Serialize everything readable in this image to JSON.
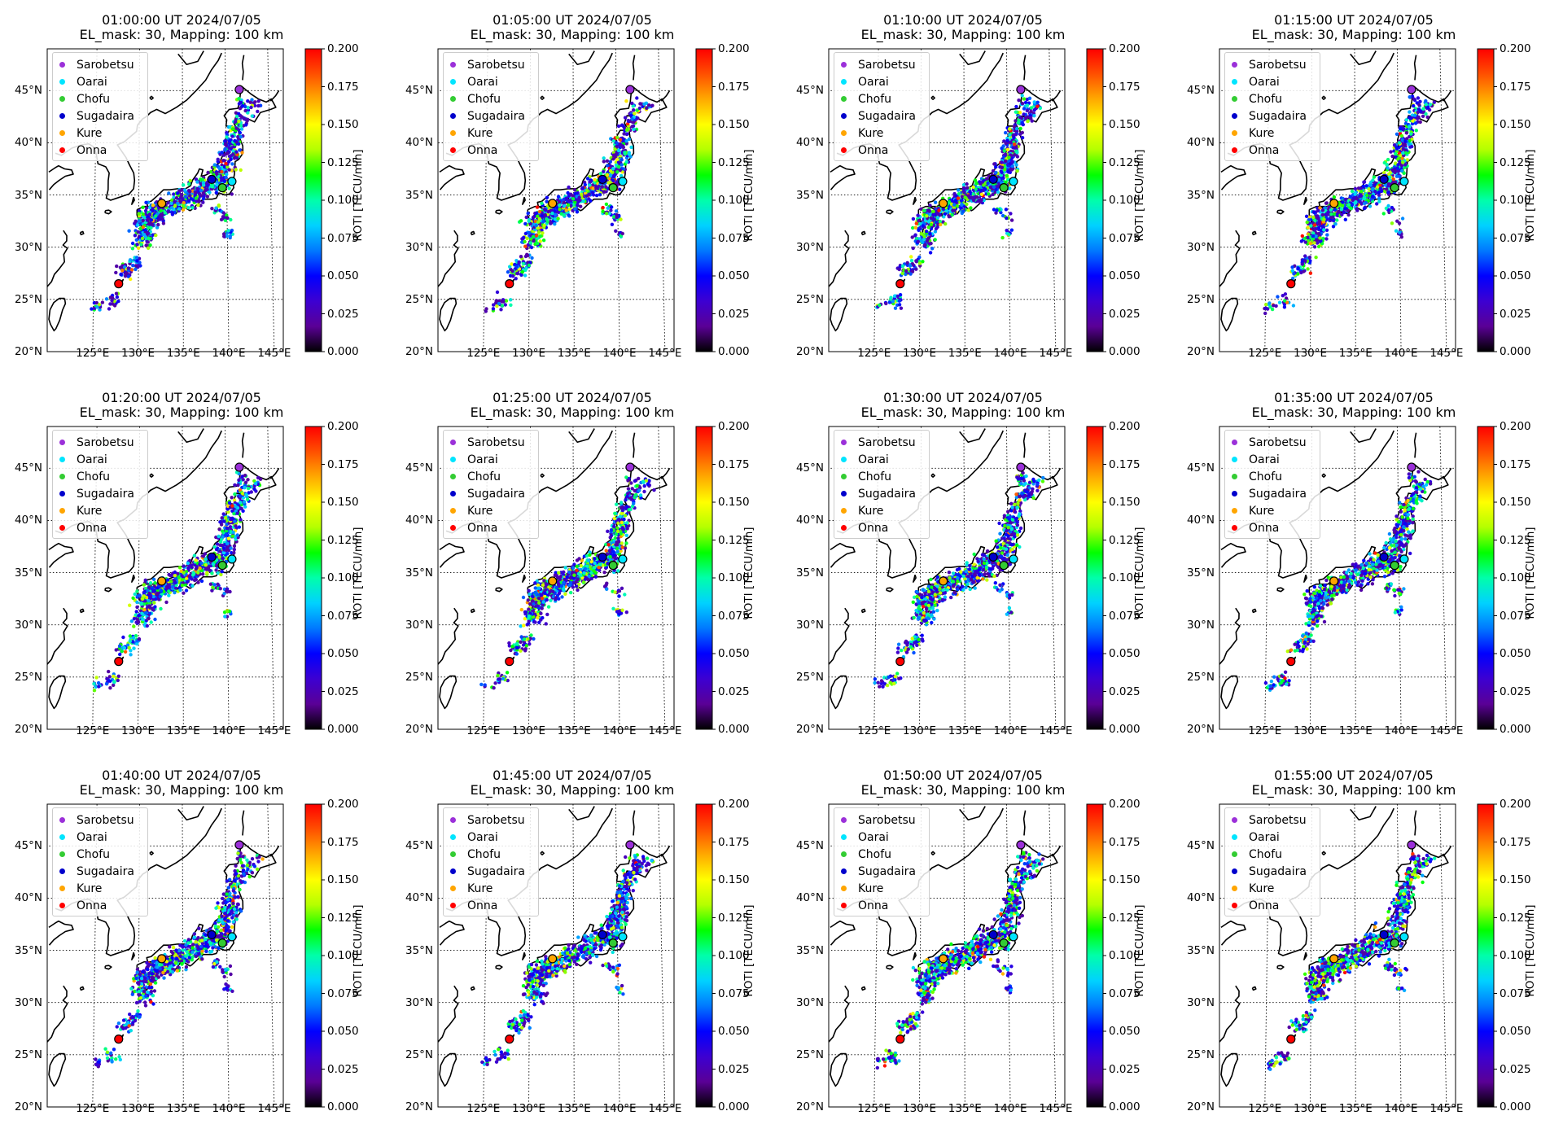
{
  "figure": {
    "title_prefix": "",
    "panels": [
      {
        "time": "01:00:00 UT 2024/07/05",
        "subtitle": "EL_mask: 30, Mapping: 100 km",
        "seed": 11
      },
      {
        "time": "01:05:00 UT 2024/07/05",
        "subtitle": "EL_mask: 30, Mapping: 100 km",
        "seed": 23
      },
      {
        "time": "01:10:00 UT 2024/07/05",
        "subtitle": "EL_mask: 30, Mapping: 100 km",
        "seed": 37
      },
      {
        "time": "01:15:00 UT 2024/07/05",
        "subtitle": "EL_mask: 30, Mapping: 100 km",
        "seed": 41
      },
      {
        "time": "01:20:00 UT 2024/07/05",
        "subtitle": "EL_mask: 30, Mapping: 100 km",
        "seed": 53
      },
      {
        "time": "01:25:00 UT 2024/07/05",
        "subtitle": "EL_mask: 30, Mapping: 100 km",
        "seed": 67
      },
      {
        "time": "01:30:00 UT 2024/07/05",
        "subtitle": "EL_mask: 30, Mapping: 100 km",
        "seed": 71
      },
      {
        "time": "01:35:00 UT 2024/07/05",
        "subtitle": "EL_mask: 30, Mapping: 100 km",
        "seed": 83
      },
      {
        "time": "01:40:00 UT 2024/07/05",
        "subtitle": "EL_mask: 30, Mapping: 100 km",
        "seed": 97
      },
      {
        "time": "01:45:00 UT 2024/07/05",
        "subtitle": "EL_mask: 30, Mapping: 100 km",
        "seed": 101
      },
      {
        "time": "01:50:00 UT 2024/07/05",
        "subtitle": "EL_mask: 30, Mapping: 100 km",
        "seed": 113
      },
      {
        "time": "01:55:00 UT 2024/07/05",
        "subtitle": "EL_mask: 30, Mapping: 100 km",
        "seed": 127
      }
    ]
  },
  "legend": [
    {
      "label": "Sarobetsu",
      "color": "#9b30d9"
    },
    {
      "label": "Oarai",
      "color": "#00e5ff"
    },
    {
      "label": "Chofu",
      "color": "#33cc33"
    },
    {
      "label": "Sugadaira",
      "color": "#0000cc"
    },
    {
      "label": "Kure",
      "color": "#ffa500"
    },
    {
      "label": "Onna",
      "color": "#ff0000"
    }
  ],
  "stations": [
    {
      "name": "Sarobetsu",
      "lon": 141.6,
      "lat": 45.1,
      "color": "#9b30d9"
    },
    {
      "name": "Oarai",
      "lon": 140.6,
      "lat": 36.3,
      "color": "#00e5ff"
    },
    {
      "name": "Chofu",
      "lon": 139.5,
      "lat": 35.7,
      "color": "#33cc33"
    },
    {
      "name": "Sugadaira",
      "lon": 138.3,
      "lat": 36.5,
      "color": "#0000cc"
    },
    {
      "name": "Kure",
      "lon": 132.6,
      "lat": 34.2,
      "color": "#ffa500"
    },
    {
      "name": "Onna",
      "lon": 127.8,
      "lat": 26.5,
      "color": "#ff0000"
    }
  ],
  "axes": {
    "lat_ticks": [
      "20°N",
      "25°N",
      "30°N",
      "35°N",
      "40°N",
      "45°N"
    ],
    "lat_values": [
      20,
      25,
      30,
      35,
      40,
      45
    ],
    "lon_ticks": [
      "125°E",
      "130°E",
      "135°E",
      "140°E",
      "145°E"
    ],
    "lon_values": [
      125,
      130,
      135,
      140,
      145
    ],
    "lat_range": [
      20,
      49
    ],
    "lon_range": [
      120,
      146
    ]
  },
  "colorbar": {
    "label": "ROTI [TECU/min]",
    "min": 0.0,
    "max": 0.2,
    "ticks": [
      "0.000",
      "0.025",
      "0.050",
      "0.075",
      "0.100",
      "0.125",
      "0.150",
      "0.175",
      "0.200"
    ],
    "colormap": [
      "#000000",
      "#5a0096",
      "#3c00d2",
      "#0000ff",
      "#0078ff",
      "#00d2ff",
      "#00ffaa",
      "#00ff00",
      "#b4ff00",
      "#ffff00",
      "#ffaa00",
      "#ff5000",
      "#ff0000"
    ]
  }
}
